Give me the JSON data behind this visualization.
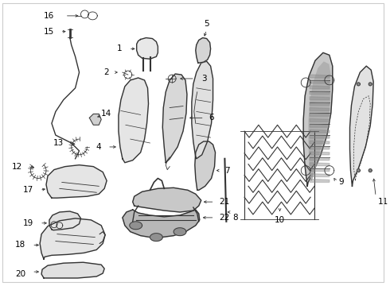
{
  "background_color": "#ffffff",
  "border_color": "#cccccc",
  "line_color": "#333333",
  "label_color": "#000000",
  "figsize": [
    4.9,
    3.6
  ],
  "dpi": 100
}
